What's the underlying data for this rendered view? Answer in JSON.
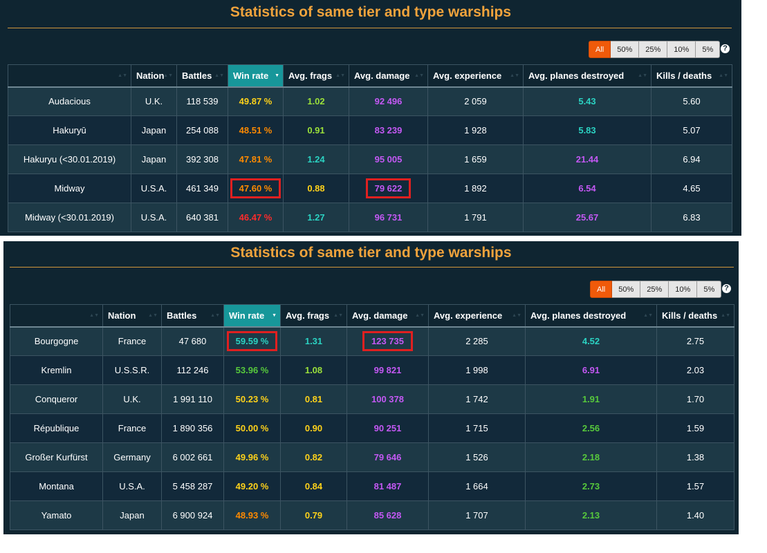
{
  "colors": {
    "orange": "#ff8a00",
    "red": "#ff2b2b",
    "yellow": "#ffd21a",
    "green": "#57c93c",
    "teal": "#2bd2c2",
    "purple": "#c458f4",
    "light_green": "#9be03a"
  },
  "tables": [
    {
      "title": "Statistics of same tier and type warships",
      "filters": [
        "All",
        "50%",
        "25%",
        "10%",
        "5%"
      ],
      "active_filter": "All",
      "help": "?",
      "columns": [
        "",
        "Nation",
        "Battles",
        "Win rate",
        "Avg. frags",
        "Avg. damage",
        "Avg. experience",
        "Avg. planes destroyed",
        "Kills / deaths"
      ],
      "sorted_column": "Win rate",
      "rows": [
        {
          "ship": "Audacious",
          "nation": "U.K.",
          "battles": "118 539",
          "win_rate": "49.87 %",
          "win_rate_color": "#ffd21a",
          "frags": "1.02",
          "frags_color": "#9be03a",
          "damage": "92 496",
          "damage_color": "#c458f4",
          "exp": "2 059",
          "planes": "5.43",
          "planes_color": "#2bd2c2",
          "kd": "5.60"
        },
        {
          "ship": "Hakuryū",
          "nation": "Japan",
          "battles": "254 088",
          "win_rate": "48.51 %",
          "win_rate_color": "#ff8a00",
          "frags": "0.91",
          "frags_color": "#9be03a",
          "damage": "83 239",
          "damage_color": "#c458f4",
          "exp": "1 928",
          "planes": "5.83",
          "planes_color": "#2bd2c2",
          "kd": "5.07"
        },
        {
          "ship": "Hakuryu (<30.01.2019)",
          "nation": "Japan",
          "battles": "392 308",
          "win_rate": "47.81 %",
          "win_rate_color": "#ff8a00",
          "frags": "1.24",
          "frags_color": "#2bd2c2",
          "damage": "95 005",
          "damage_color": "#c458f4",
          "exp": "1 659",
          "planes": "21.44",
          "planes_color": "#c458f4",
          "kd": "6.94"
        },
        {
          "ship": "Midway",
          "nation": "U.S.A.",
          "battles": "461 349",
          "win_rate": "47.60 %",
          "win_rate_color": "#ff8a00",
          "win_rate_boxed": true,
          "frags": "0.88",
          "frags_color": "#ffd21a",
          "damage": "79 622",
          "damage_color": "#c458f4",
          "damage_boxed": true,
          "exp": "1 892",
          "planes": "6.54",
          "planes_color": "#c458f4",
          "kd": "4.65"
        },
        {
          "ship": "Midway (<30.01.2019)",
          "nation": "U.S.A.",
          "battles": "640 381",
          "win_rate": "46.47 %",
          "win_rate_color": "#ff2b2b",
          "frags": "1.27",
          "frags_color": "#2bd2c2",
          "damage": "96 731",
          "damage_color": "#c458f4",
          "exp": "1 791",
          "planes": "25.67",
          "planes_color": "#c458f4",
          "kd": "6.83"
        }
      ]
    },
    {
      "title": "Statistics of same tier and type warships",
      "filters": [
        "All",
        "50%",
        "25%",
        "10%",
        "5%"
      ],
      "active_filter": "All",
      "help": "?",
      "columns": [
        "",
        "Nation",
        "Battles",
        "Win rate",
        "Avg. frags",
        "Avg. damage",
        "Avg. experience",
        "Avg. planes destroyed",
        "Kills / deaths"
      ],
      "sorted_column": "Win rate",
      "rows": [
        {
          "ship": "Bourgogne",
          "nation": "France",
          "battles": "47 680",
          "win_rate": "59.59 %",
          "win_rate_color": "#2bd2c2",
          "win_rate_boxed": true,
          "frags": "1.31",
          "frags_color": "#2bd2c2",
          "damage": "123 735",
          "damage_color": "#c458f4",
          "damage_boxed": true,
          "exp": "2 285",
          "planes": "4.52",
          "planes_color": "#2bd2c2",
          "kd": "2.75"
        },
        {
          "ship": "Kremlin",
          "nation": "U.S.S.R.",
          "battles": "112 246",
          "win_rate": "53.96 %",
          "win_rate_color": "#57c93c",
          "frags": "1.08",
          "frags_color": "#9be03a",
          "damage": "99 821",
          "damage_color": "#c458f4",
          "exp": "1 998",
          "planes": "6.91",
          "planes_color": "#c458f4",
          "kd": "2.03"
        },
        {
          "ship": "Conqueror",
          "nation": "U.K.",
          "battles": "1 991 110",
          "win_rate": "50.23 %",
          "win_rate_color": "#ffd21a",
          "frags": "0.81",
          "frags_color": "#ffd21a",
          "damage": "100 378",
          "damage_color": "#c458f4",
          "exp": "1 742",
          "planes": "1.91",
          "planes_color": "#57c93c",
          "kd": "1.70"
        },
        {
          "ship": "République",
          "nation": "France",
          "battles": "1 890 356",
          "win_rate": "50.00 %",
          "win_rate_color": "#ffd21a",
          "frags": "0.90",
          "frags_color": "#ffd21a",
          "damage": "90 251",
          "damage_color": "#c458f4",
          "exp": "1 715",
          "planes": "2.56",
          "planes_color": "#57c93c",
          "kd": "1.59"
        },
        {
          "ship": "Großer Kurfürst",
          "nation": "Germany",
          "battles": "6 002 661",
          "win_rate": "49.96 %",
          "win_rate_color": "#ffd21a",
          "frags": "0.82",
          "frags_color": "#ffd21a",
          "damage": "79 646",
          "damage_color": "#c458f4",
          "exp": "1 526",
          "planes": "2.18",
          "planes_color": "#57c93c",
          "kd": "1.38"
        },
        {
          "ship": "Montana",
          "nation": "U.S.A.",
          "battles": "5 458 287",
          "win_rate": "49.20 %",
          "win_rate_color": "#ffd21a",
          "frags": "0.84",
          "frags_color": "#ffd21a",
          "damage": "81 487",
          "damage_color": "#c458f4",
          "exp": "1 664",
          "planes": "2.73",
          "planes_color": "#57c93c",
          "kd": "1.57"
        },
        {
          "ship": "Yamato",
          "nation": "Japan",
          "battles": "6 900 924",
          "win_rate": "48.93 %",
          "win_rate_color": "#ff8a00",
          "frags": "0.79",
          "frags_color": "#ffd21a",
          "damage": "85 628",
          "damage_color": "#c458f4",
          "exp": "1 707",
          "planes": "2.13",
          "planes_color": "#57c93c",
          "kd": "1.40"
        }
      ]
    }
  ]
}
